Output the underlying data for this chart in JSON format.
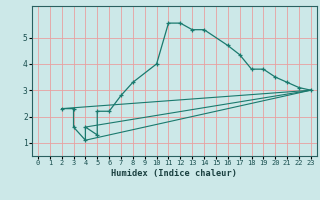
{
  "xlabel": "Humidex (Indice chaleur)",
  "background_color": "#cce8e8",
  "grid_color": "#e8a0a0",
  "line_color": "#1a7a6e",
  "xlim": [
    -0.5,
    23.5
  ],
  "ylim": [
    0.5,
    6.2
  ],
  "yticks": [
    1,
    2,
    3,
    4,
    5
  ],
  "xticks": [
    0,
    1,
    2,
    3,
    4,
    5,
    6,
    7,
    8,
    9,
    10,
    11,
    12,
    13,
    14,
    15,
    16,
    17,
    18,
    19,
    20,
    21,
    22,
    23
  ],
  "line1_x": [
    2,
    3,
    3,
    4,
    4,
    5,
    5,
    6,
    7,
    8,
    10,
    11,
    12,
    13,
    14,
    16,
    17,
    18,
    19,
    20,
    21,
    22,
    23
  ],
  "line1_y": [
    2.3,
    2.3,
    1.6,
    1.1,
    1.6,
    1.3,
    2.2,
    2.2,
    2.8,
    3.3,
    4.0,
    5.55,
    5.55,
    5.3,
    5.3,
    4.7,
    4.35,
    3.8,
    3.8,
    3.5,
    3.3,
    3.1,
    3.0
  ],
  "line2_x": [
    2,
    23
  ],
  "line2_y": [
    2.3,
    3.0
  ],
  "line3_x": [
    4,
    23
  ],
  "line3_y": [
    1.1,
    3.0
  ],
  "line4_x": [
    4,
    23
  ],
  "line4_y": [
    1.6,
    3.0
  ]
}
